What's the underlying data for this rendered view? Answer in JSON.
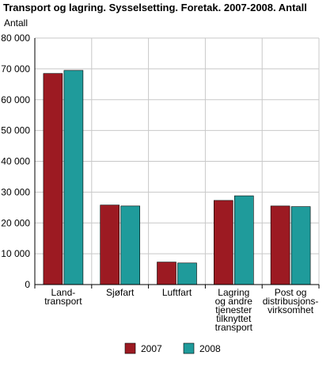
{
  "chart_data": {
    "type": "bar",
    "title": "Transport og lagring. Sysselsetting. Foretak. 2007-2008. Antall",
    "ylabel": "Antall",
    "xlabel": "",
    "ylim": [
      0,
      80000
    ],
    "yticks": [
      0,
      10000,
      20000,
      30000,
      40000,
      50000,
      60000,
      70000,
      80000
    ],
    "ytick_labels": [
      "0",
      "10 000",
      "20 000",
      "30 000",
      "40 000",
      "50 000",
      "60 000",
      "70 000",
      "80 000"
    ],
    "categories": [
      [
        "Land-",
        "transport"
      ],
      [
        "Sjøfart"
      ],
      [
        "Luftfart"
      ],
      [
        "Lagring",
        "og andre",
        "tjenester",
        "tilknyttet",
        "transport"
      ],
      [
        "Post og",
        "distribusjons-",
        "virksomhet"
      ]
    ],
    "series": [
      {
        "name": "2007",
        "color": "#9c1a22",
        "values": [
          68500,
          25800,
          7300,
          27300,
          25500
        ]
      },
      {
        "name": "2008",
        "color": "#1f9b9b",
        "values": [
          69500,
          25500,
          7000,
          28800,
          25300
        ]
      }
    ],
    "grid": true,
    "legend_position": "bottom"
  }
}
